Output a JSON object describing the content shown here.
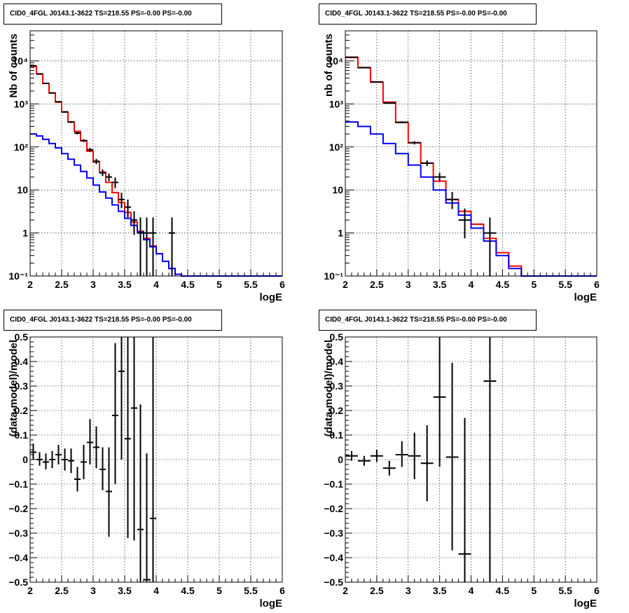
{
  "charts": [
    {
      "title": "CID0_4FGL J0143.1-3622 TS=218.55 PS=-0.00 PS=-0.00",
      "ylabel": "Nb of counts",
      "xlabel": "logE",
      "xticks": [
        "2",
        "2.5",
        "3",
        "3.5",
        "4",
        "4.5",
        "5",
        "5.5",
        "6"
      ],
      "yticks": [
        "10⁻¹",
        "1",
        "10",
        "10²",
        "10³",
        "10⁴"
      ]
    },
    {
      "title": "CID0_4FGL J0143.1-3622 TS=218.55 PS=-0.00 PS=-0.00",
      "ylabel": "nb of counts",
      "xlabel": "logE",
      "xticks": [
        "2",
        "2.5",
        "3",
        "3.5",
        "4",
        "4.5",
        "5",
        "5.5",
        "6"
      ],
      "yticks": [
        "10⁻¹",
        "1",
        "10",
        "10²",
        "10³",
        "10⁴"
      ]
    },
    {
      "title": "CID0_4FGL J0143.1-3622 TS=218.55 PS=-0.00 PS=-0.00",
      "ylabel": "(data-model)/model",
      "xlabel": "logE",
      "xticks": [
        "2",
        "2.5",
        "3",
        "3.5",
        "4",
        "4.5",
        "5",
        "5.5",
        "6"
      ],
      "yticks": [
        "−0.5",
        "−0.4",
        "−0.3",
        "−0.2",
        "−0.1",
        "0",
        "0.1",
        "0.2",
        "0.3",
        "0.4",
        "0.5"
      ]
    },
    {
      "title": "CID0_4FGL J0143.1-3622 TS=218.55 PS=-0.00 PS=-0.00",
      "ylabel": "(data-model)/model",
      "xlabel": "logE",
      "xticks": [
        "2",
        "2.5",
        "3",
        "3.5",
        "4",
        "4.5",
        "5",
        "5.5",
        "6"
      ],
      "yticks": [
        "−0.5",
        "−0.4",
        "−0.3",
        "−0.2",
        "−0.1",
        "0",
        "0.1",
        "0.2",
        "0.3",
        "0.4",
        "0.5"
      ]
    }
  ],
  "colors": {
    "total_model": "#ff0000",
    "component_model": "#0000ff",
    "data": "#000000"
  },
  "chart_data": [
    {
      "type": "line",
      "title": "CID0_4FGL J0143.1-3622 TS=218.55 PS=-0.00 PS=-0.00",
      "xlabel": "logE",
      "ylabel": "Nb of counts",
      "xlim": [
        2,
        6
      ],
      "ylim": [
        0.1,
        50000
      ],
      "yscale": "log",
      "grid": true,
      "bin_edges": [
        2,
        2.1,
        2.2,
        2.3,
        2.4,
        2.5,
        2.6,
        2.7,
        2.8,
        2.9,
        3,
        3.1,
        3.2,
        3.3,
        3.4,
        3.5,
        3.6,
        3.7,
        3.8,
        3.9,
        4,
        4.1,
        4.2,
        4.3,
        4.4,
        4.5,
        4.6,
        4.7,
        4.8,
        4.9,
        5,
        5.1,
        5.2,
        5.3,
        5.4,
        5.5,
        5.6,
        5.7,
        5.8,
        5.9,
        6
      ],
      "series": [
        {
          "style": "step",
          "color": "#ff0000",
          "values": [
            7500,
            5000,
            3000,
            1800,
            1100,
            650,
            380,
            230,
            140,
            80,
            45,
            26,
            15,
            8.7,
            5.1,
            3.0,
            1.8,
            1.1,
            0.75,
            0.5,
            0.33,
            0.22,
            0.15,
            0.11,
            0.1,
            0.1,
            0.1,
            0.1,
            0.1,
            0.1,
            0.1,
            0.1,
            0.1,
            0.1,
            0.1,
            0.1,
            0.1,
            0.1,
            0.1,
            0.1
          ]
        },
        {
          "style": "step",
          "color": "#0000ff",
          "values": [
            200,
            180,
            150,
            120,
            95,
            70,
            52,
            38,
            27,
            19,
            13,
            9,
            6.5,
            4.5,
            3.2,
            2.2,
            1.5,
            1.05,
            0.7,
            0.48,
            0.33,
            0.22,
            0.15,
            0.11,
            0.1,
            0.1,
            0.1,
            0.1,
            0.1,
            0.1,
            0.1,
            0.1,
            0.1,
            0.1,
            0.1,
            0.1,
            0.1,
            0.1,
            0.1,
            0.1
          ]
        },
        {
          "style": "errorbar",
          "color": "#000000",
          "x": [
            2.05,
            2.15,
            2.25,
            2.35,
            2.45,
            2.55,
            2.65,
            2.75,
            2.85,
            2.95,
            3.05,
            3.15,
            3.25,
            3.35,
            3.45,
            3.55,
            3.65,
            3.75,
            3.85,
            3.95,
            4.25
          ],
          "y": [
            7700,
            4950,
            3000,
            1800,
            1125,
            650,
            380,
            210,
            140,
            86,
            46.5,
            25,
            20,
            15,
            6,
            4,
            2,
            1,
            1,
            1,
            1
          ],
          "ylo": [
            7600,
            4880,
            2945,
            1758,
            1092,
            625,
            361,
            196,
            129,
            77,
            40,
            21,
            16,
            11,
            3.8,
            2.3,
            0.9,
            0.05,
            0.05,
            0.05,
            0.05
          ],
          "yhi": [
            7800,
            5020,
            3055,
            1842,
            1158,
            675,
            399,
            224,
            151,
            95,
            53,
            30,
            24,
            19.5,
            8.6,
            6,
            3.2,
            2.3,
            2.3,
            2.3,
            2.3
          ]
        }
      ]
    },
    {
      "type": "line",
      "title": "CID0_4FGL J0143.1-3622 TS=218.55 PS=-0.00 PS=-0.00",
      "xlabel": "logE",
      "ylabel": "nb of counts",
      "xlim": [
        2,
        6
      ],
      "ylim": [
        0.1,
        50000
      ],
      "yscale": "log",
      "grid": true,
      "bin_edges": [
        2,
        2.2,
        2.4,
        2.6,
        2.8,
        3,
        3.2,
        3.4,
        3.6,
        3.8,
        4,
        4.2,
        4.4,
        4.6,
        4.8,
        5,
        5.2,
        5.4,
        5.6,
        5.8,
        6
      ],
      "series": [
        {
          "style": "step",
          "color": "#ff0000",
          "values": [
            12000,
            7000,
            3200,
            1100,
            370,
            125,
            42,
            16,
            6,
            3.2,
            1.6,
            0.75,
            0.35,
            0.17,
            0.1,
            0.1,
            0.1,
            0.1,
            0.1,
            0.1
          ]
        },
        {
          "style": "step",
          "color": "#0000ff",
          "values": [
            380,
            300,
            200,
            120,
            70,
            38,
            20,
            10,
            5,
            2.6,
            1.3,
            0.65,
            0.3,
            0.15,
            0.1,
            0.1,
            0.1,
            0.1,
            0.1,
            0.1
          ]
        },
        {
          "style": "errorbar",
          "color": "#000000",
          "x": [
            2.1,
            2.3,
            2.5,
            2.7,
            2.9,
            3.1,
            3.3,
            3.5,
            3.7,
            3.9,
            4.3
          ],
          "y": [
            12200,
            6950,
            3250,
            1050,
            375,
            125,
            42,
            20,
            6,
            2,
            1
          ],
          "ylo": [
            12090,
            6867,
            3193,
            1018,
            356,
            114,
            36,
            16,
            3.6,
            0.75,
            0.05
          ],
          "yhi": [
            12310,
            7033,
            3307,
            1082,
            394,
            136,
            48.5,
            25,
            9,
            3.7,
            2.3
          ]
        }
      ]
    },
    {
      "type": "scatter",
      "title": "CID0_4FGL J0143.1-3622 TS=218.55 PS=-0.00 PS=-0.00",
      "xlabel": "logE",
      "ylabel": "(data-model)/model",
      "xlim": [
        2,
        6
      ],
      "ylim": [
        -0.5,
        0.5
      ],
      "grid": true,
      "series": [
        {
          "style": "errorbar",
          "color": "#000000",
          "xerr": 0.05,
          "x": [
            2.05,
            2.15,
            2.25,
            2.35,
            2.45,
            2.55,
            2.65,
            2.75,
            2.85,
            2.95,
            3.05,
            3.15,
            3.25,
            3.35,
            3.45,
            3.55,
            3.65,
            3.75,
            3.85,
            3.95
          ],
          "y": [
            0.03,
            0.0,
            -0.01,
            0.0,
            0.02,
            0.0,
            -0.005,
            -0.08,
            -0.01,
            0.07,
            0.05,
            -0.04,
            -0.13,
            0.18,
            0.36,
            0.085,
            0.21,
            -0.285,
            -0.49,
            -0.24
          ],
          "ylo": [
            0.0,
            -0.025,
            -0.04,
            -0.035,
            -0.02,
            -0.045,
            -0.055,
            -0.13,
            -0.08,
            -0.02,
            -0.035,
            -0.125,
            -0.315,
            -0.1,
            0.0,
            -0.32,
            -0.33,
            -0.5,
            -0.5,
            -0.5
          ],
          "yhi": [
            0.065,
            0.03,
            0.025,
            0.035,
            0.06,
            0.045,
            0.045,
            -0.03,
            0.06,
            0.165,
            0.135,
            0.05,
            0.05,
            0.475,
            0.5,
            0.5,
            0.5,
            0.225,
            0.025,
            0.5
          ]
        }
      ]
    },
    {
      "type": "scatter",
      "title": "CID0_4FGL J0143.1-3622 TS=218.55 PS=-0.00 PS=-0.00",
      "xlabel": "logE",
      "ylabel": "(data-model)/model",
      "xlim": [
        2,
        6
      ],
      "ylim": [
        -0.5,
        0.5
      ],
      "grid": true,
      "series": [
        {
          "style": "errorbar",
          "color": "#000000",
          "xerr": 0.1,
          "x": [
            2.1,
            2.3,
            2.5,
            2.7,
            2.9,
            3.1,
            3.3,
            3.5,
            3.7,
            3.9,
            4.3
          ],
          "y": [
            0.015,
            -0.005,
            0.015,
            -0.035,
            0.02,
            0.015,
            -0.015,
            0.255,
            0.01,
            -0.385,
            0.32
          ],
          "ylo": [
            -0.005,
            -0.025,
            -0.01,
            -0.065,
            -0.03,
            -0.08,
            -0.17,
            -0.03,
            -0.37,
            -0.5,
            -0.5
          ],
          "yhi": [
            0.035,
            0.015,
            0.04,
            -0.005,
            0.075,
            0.11,
            0.14,
            0.5,
            0.395,
            0.17,
            0.5
          ]
        }
      ]
    }
  ]
}
